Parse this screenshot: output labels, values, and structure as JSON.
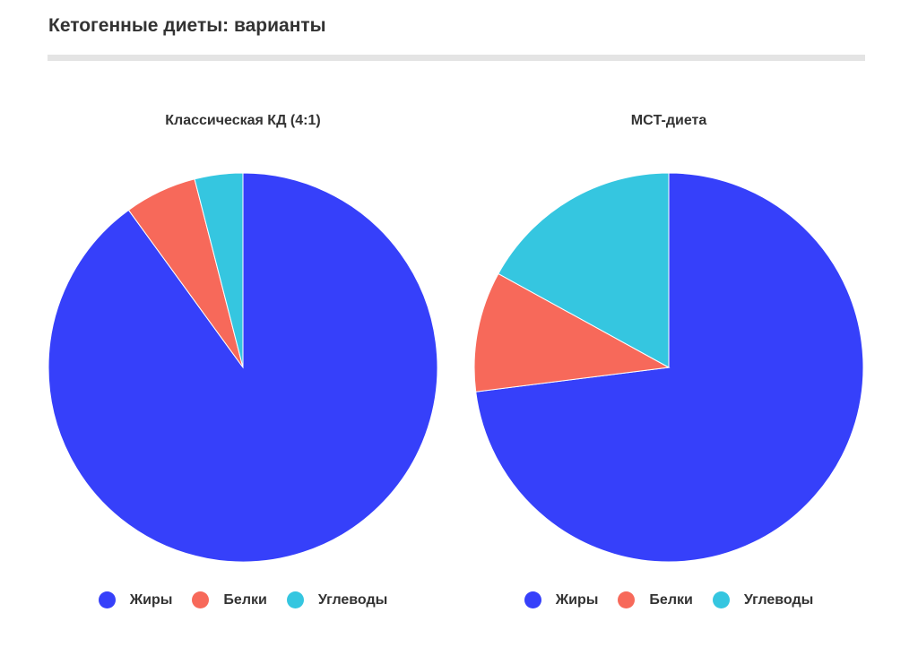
{
  "page": {
    "title": "Кетогенные диеты: варианты"
  },
  "chart_data": [
    {
      "type": "pie",
      "title": "Классическая КД (4:1)",
      "categories": [
        "Жиры",
        "Белки",
        "Углеводы"
      ],
      "values": [
        90,
        6,
        4
      ],
      "colors": [
        "#3640fa",
        "#f7695a",
        "#35c6e0"
      ],
      "legend": "bottom"
    },
    {
      "type": "pie",
      "title": "MCT-диета",
      "categories": [
        "Жиры",
        "Белки",
        "Углеводы"
      ],
      "values": [
        73,
        10,
        17
      ],
      "colors": [
        "#3640fa",
        "#f7695a",
        "#35c6e0"
      ],
      "legend": "bottom"
    }
  ]
}
